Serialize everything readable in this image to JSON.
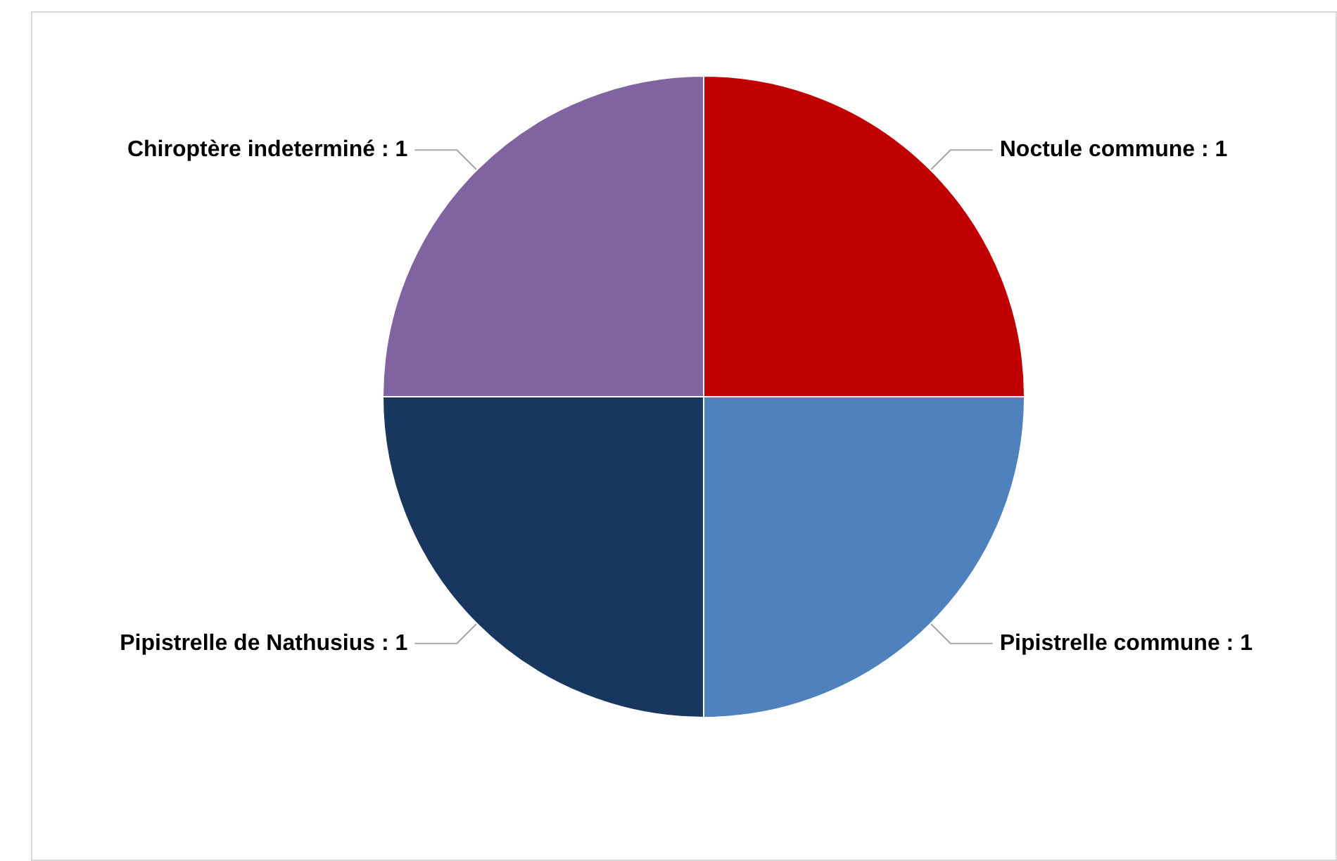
{
  "chart_data": {
    "type": "pie",
    "categories": [
      "Noctule commune",
      "Pipistrelle commune",
      "Pipistrelle de Nathusius",
      "Chiroptère indeterminé"
    ],
    "values": [
      1,
      1,
      1,
      1
    ],
    "colors": [
      "#c00000",
      "#4f81bd",
      "#17375e",
      "#8064a2"
    ],
    "value_labels": [
      "1",
      "1",
      "1",
      "1"
    ]
  }
}
